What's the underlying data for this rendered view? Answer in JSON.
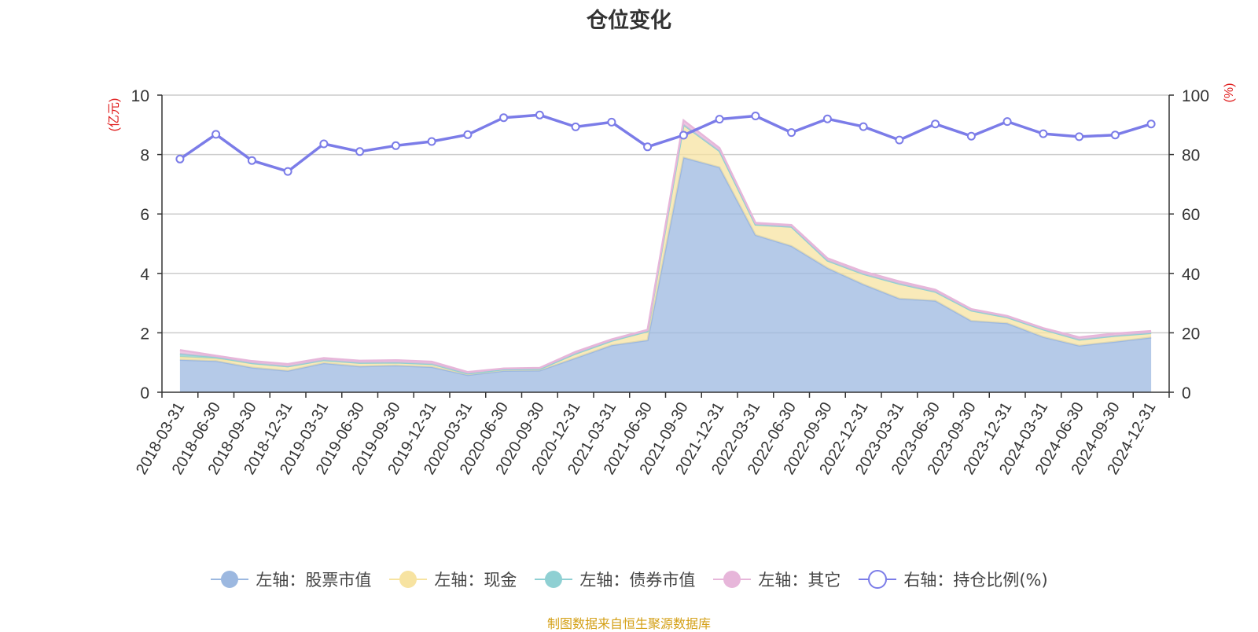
{
  "chart_data": {
    "type": "area",
    "title": "仓位变化",
    "left_axis_label": "(亿元)",
    "right_axis_label": "(%)",
    "left_ylim": [
      0,
      10
    ],
    "right_ylim": [
      0,
      100
    ],
    "left_ticks": [
      "0",
      "2",
      "4",
      "6",
      "8",
      "10"
    ],
    "right_ticks": [
      "0",
      "20",
      "40",
      "60",
      "80",
      "100"
    ],
    "grid": true,
    "legend_position": "bottom",
    "categories": [
      "2018-03-31",
      "2018-06-30",
      "2018-09-30",
      "2018-12-31",
      "2019-03-31",
      "2019-06-30",
      "2019-09-30",
      "2019-12-31",
      "2020-03-31",
      "2020-06-30",
      "2020-09-30",
      "2020-12-31",
      "2021-03-31",
      "2021-06-30",
      "2021-09-30",
      "2021-12-31",
      "2022-03-31",
      "2022-06-30",
      "2022-09-30",
      "2022-12-31",
      "2023-03-31",
      "2023-06-30",
      "2023-09-30",
      "2023-12-31",
      "2024-03-31",
      "2024-06-30",
      "2024-09-30",
      "2024-12-31"
    ],
    "series": [
      {
        "name": "左轴：股票市值",
        "axis": "left",
        "kind": "stacked-area",
        "color": "#9cb8e0",
        "values": [
          1.09,
          1.05,
          0.83,
          0.72,
          0.98,
          0.87,
          0.9,
          0.85,
          0.58,
          0.72,
          0.73,
          1.15,
          1.58,
          1.75,
          7.9,
          7.57,
          5.29,
          4.92,
          4.18,
          3.63,
          3.15,
          3.08,
          2.4,
          2.32,
          1.86,
          1.57,
          1.7,
          1.84
        ]
      },
      {
        "name": "左轴：现金",
        "axis": "left",
        "kind": "stacked-area",
        "color": "#f7e3a1",
        "values": [
          0.1,
          0.08,
          0.15,
          0.15,
          0.1,
          0.12,
          0.1,
          0.1,
          0.05,
          0.05,
          0.05,
          0.15,
          0.15,
          0.3,
          1.1,
          0.55,
          0.35,
          0.65,
          0.25,
          0.35,
          0.5,
          0.3,
          0.35,
          0.2,
          0.25,
          0.2,
          0.2,
          0.15
        ]
      },
      {
        "name": "左轴：债券市值",
        "axis": "left",
        "kind": "stacked-area",
        "color": "#8fd0d3",
        "values": [
          0.1,
          0.05,
          0,
          0,
          0,
          0,
          0,
          0,
          0,
          0,
          0,
          0,
          0,
          0,
          0,
          0,
          0,
          0,
          0,
          0,
          0,
          0,
          0,
          0,
          0,
          0,
          0,
          0
        ]
      },
      {
        "name": "左轴：其它",
        "axis": "left",
        "kind": "stacked-area",
        "color": "#e7b6da",
        "values": [
          0.13,
          0.05,
          0.07,
          0.08,
          0.07,
          0.07,
          0.08,
          0.08,
          0.05,
          0.03,
          0.04,
          0.06,
          0.05,
          0.05,
          0.15,
          0.1,
          0.06,
          0.06,
          0.08,
          0.08,
          0.08,
          0.07,
          0.05,
          0.05,
          0.05,
          0.08,
          0.08,
          0.07
        ]
      },
      {
        "name": "右轴：持仓比例(%)",
        "axis": "right",
        "kind": "line",
        "color": "#7b7ce8",
        "values": [
          78.5,
          86.8,
          78.0,
          74.3,
          83.6,
          81.0,
          83.0,
          84.4,
          86.7,
          92.4,
          93.3,
          89.3,
          90.9,
          82.6,
          86.5,
          91.9,
          93.0,
          87.4,
          92.0,
          89.4,
          84.9,
          90.3,
          86.2,
          91.1,
          87.0,
          86.0,
          86.6,
          90.3
        ]
      }
    ]
  },
  "footer": {
    "source_note": "制图数据来自恒生聚源数据库"
  }
}
